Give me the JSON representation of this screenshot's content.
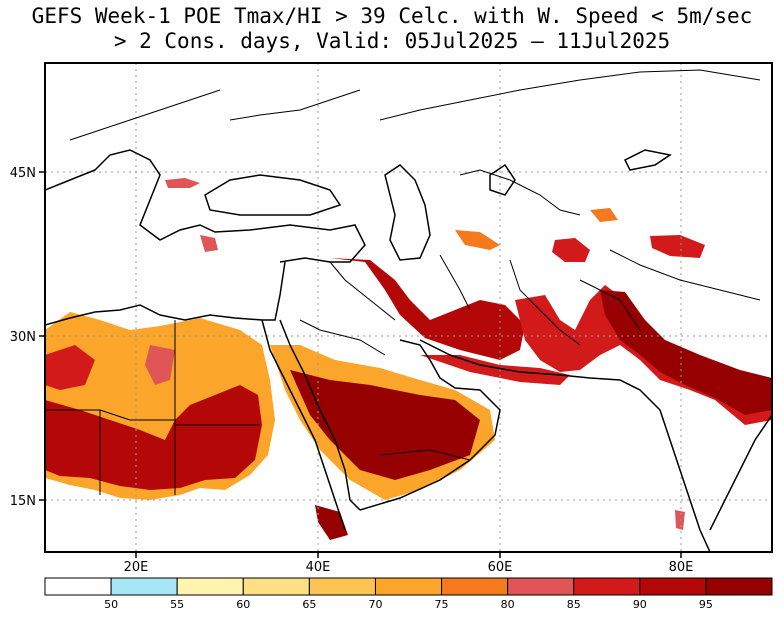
{
  "title": {
    "line1": "GEFS Week-1 POE Tmax/HI > 39 Celc. with W. Speed < 5m/sec",
    "line2": "> 2 Cons. days, Valid: 05Jul2025 – 11Jul2025"
  },
  "map": {
    "lon_range": [
      10,
      90
    ],
    "lat_range": [
      10,
      55
    ],
    "lat_labels": [
      "45N",
      "30N",
      "15N"
    ],
    "lon_labels": [
      "20E",
      "40E",
      "60E",
      "80E"
    ],
    "gridlines": "dotted"
  },
  "colorbar": {
    "thresholds": [
      "50",
      "55",
      "60",
      "65",
      "70",
      "75",
      "80",
      "85",
      "90",
      "95"
    ],
    "colors": [
      "#ffffff",
      "#a6e6f5",
      "#fff4b0",
      "#fde086",
      "#fdc353",
      "#fba52a",
      "#f57a1d",
      "#e05555",
      "#d21a1a",
      "#b40707",
      "#960000"
    ]
  }
}
